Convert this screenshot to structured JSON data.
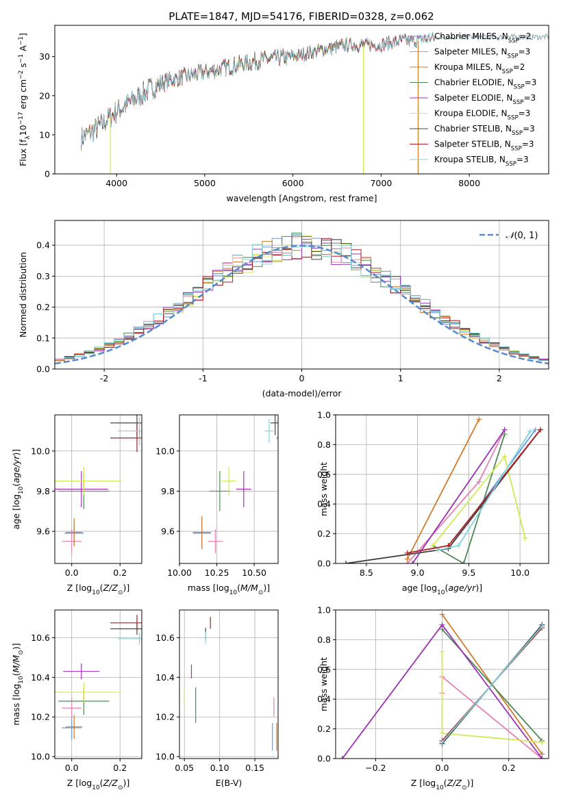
{
  "figure": {
    "title": "PLATE=1847, MJD=54176, FIBERID=0328, z=0.062"
  },
  "colors": {
    "Chabrier MILES": "#6699e0",
    "Salpeter MILES": "#e680b4",
    "Kroupa MILES": "#d27a2a",
    "Chabrier ELODIE": "#4d8a55",
    "Salpeter ELODIE": "#9b2fb5",
    "Kroupa ELODIE": "#d2e84f",
    "Chabrier STELIB": "#444444",
    "Salpeter STELIB": "#b01c1c",
    "Kroupa STELIB": "#7fd3dd",
    "normal": "#5588cc",
    "grid": "#b0b0b0"
  },
  "chart_data": [
    {
      "id": "spectrum",
      "type": "line",
      "xlabel": "wavelength [Angstrom, rest frame]",
      "ylabel": "Flux [f",
      "xlim": [
        3300,
        8900
      ],
      "ylim": [
        0,
        38
      ],
      "xticks": [
        4000,
        5000,
        6000,
        7000,
        8000
      ],
      "yticks": [
        0,
        10,
        20,
        30
      ],
      "grid": false,
      "legend_position": "upper right",
      "legend": [
        {
          "name": "Chabrier MILES",
          "nssp": "2"
        },
        {
          "name": "Salpeter MILES",
          "nssp": "3"
        },
        {
          "name": "Kroupa MILES",
          "nssp": "2"
        },
        {
          "name": "Chabrier ELODIE",
          "nssp": "3"
        },
        {
          "name": "Salpeter ELODIE",
          "nssp": "3"
        },
        {
          "name": "Kroupa ELODIE",
          "nssp": "3"
        },
        {
          "name": "Chabrier STELIB",
          "nssp": "3"
        },
        {
          "name": "Salpeter STELIB",
          "nssp": "3"
        },
        {
          "name": "Kroupa STELIB",
          "nssp": "3"
        }
      ],
      "continuum": {
        "x": [
          3600,
          3800,
          4000,
          4200,
          4400,
          4600,
          4800,
          5000,
          5200,
          5400,
          5600,
          5800,
          6000,
          6200,
          6400,
          6600,
          6800,
          7000,
          7200,
          7400,
          7600
        ],
        "y": [
          9,
          12,
          16,
          19,
          22,
          24,
          25,
          26,
          27,
          28,
          29,
          29.5,
          30,
          31,
          32,
          33,
          33,
          33,
          34,
          34,
          35
        ]
      },
      "model_ranges": {
        "MILES": [
          3600,
          7400
        ],
        "ELODIE": [
          3600,
          6800
        ],
        "STELIB": [
          3600,
          8900
        ]
      },
      "dips": [
        {
          "x": 3930,
          "y": 0
        },
        {
          "x": 6800,
          "y": 0
        },
        {
          "x": 7420,
          "y": 0
        }
      ]
    },
    {
      "id": "residuals",
      "type": "histogram",
      "xlabel": "(data-model)/error",
      "ylabel": "Normed distribution",
      "xlim": [
        -2.5,
        2.5
      ],
      "ylim": [
        0,
        0.48
      ],
      "xticks": [
        -2,
        -1,
        0,
        1,
        2
      ],
      "yticks": [
        0.0,
        0.1,
        0.2,
        0.3,
        0.4
      ],
      "grid": true,
      "legend_position": "upper right",
      "normal_label": "(0, 1)",
      "bin_width": 0.1,
      "bin_start": -2.5
    },
    {
      "id": "age_vs_Z",
      "type": "errorbar",
      "xlabel": "Z [log",
      "ylabel": "age  [log",
      "xlim": [
        -0.07,
        0.29
      ],
      "ylim": [
        9.44,
        10.18
      ],
      "xticks": [
        0.0,
        0.2
      ],
      "yticks": [
        9.6,
        9.8,
        10.0
      ],
      "grid": true,
      "points": [
        {
          "model": "Chabrier MILES",
          "x": 0.01,
          "xerr": 0.04,
          "y": 9.59,
          "yerr": 0.06
        },
        {
          "model": "Salpeter MILES",
          "x": 0.0,
          "xerr": 0.04,
          "y": 9.55,
          "yerr": 0.06
        },
        {
          "model": "Kroupa MILES",
          "x": 0.01,
          "xerr": 0.035,
          "y": 9.595,
          "yerr": 0.07
        },
        {
          "model": "Chabrier ELODIE",
          "x": 0.05,
          "xerr": 0.105,
          "y": 9.8,
          "yerr": 0.09
        },
        {
          "model": "Salpeter ELODIE",
          "x": 0.04,
          "xerr": 0.11,
          "y": 9.81,
          "yerr": 0.09
        },
        {
          "model": "Kroupa ELODIE",
          "x": 0.05,
          "xerr": 0.155,
          "y": 9.85,
          "yerr": 0.07
        },
        {
          "model": "Chabrier STELIB",
          "x": 0.27,
          "xerr": 0.11,
          "y": 10.14,
          "yerr": 0.07
        },
        {
          "model": "Salpeter STELIB",
          "x": 0.27,
          "xerr": 0.11,
          "y": 10.065,
          "yerr": 0.07
        },
        {
          "model": "Kroupa STELIB",
          "x": 0.28,
          "xerr": 0.09,
          "y": 10.1,
          "yerr": 0.07
        }
      ]
    },
    {
      "id": "age_vs_mass",
      "type": "errorbar",
      "xlabel": "mass [log",
      "ylabel": "",
      "xlim": [
        10.0,
        10.66
      ],
      "ylim": [
        9.44,
        10.18
      ],
      "xticks": [
        10.0,
        10.25,
        10.5
      ],
      "xticklabels": [
        "10.00",
        "10.25",
        "10.50"
      ],
      "yticks": [
        9.6,
        9.8,
        10.0
      ],
      "grid": true,
      "points": [
        {
          "model": "Chabrier MILES",
          "x": 10.15,
          "xerr": 0.06,
          "y": 9.59,
          "yerr": 0.08
        },
        {
          "model": "Salpeter MILES",
          "x": 10.24,
          "xerr": 0.05,
          "y": 9.55,
          "yerr": 0.06
        },
        {
          "model": "Kroupa MILES",
          "x": 10.15,
          "xerr": 0.06,
          "y": 9.595,
          "yerr": 0.08
        },
        {
          "model": "Chabrier ELODIE",
          "x": 10.27,
          "xerr": 0.07,
          "y": 9.8,
          "yerr": 0.1
        },
        {
          "model": "Salpeter ELODIE",
          "x": 10.43,
          "xerr": 0.05,
          "y": 9.81,
          "yerr": 0.09
        },
        {
          "model": "Kroupa ELODIE",
          "x": 10.33,
          "xerr": 0.05,
          "y": 9.85,
          "yerr": 0.07
        },
        {
          "model": "Chabrier STELIB",
          "x": 10.64,
          "xerr": 0.03,
          "y": 10.14,
          "yerr": 0.06
        },
        {
          "model": "Salpeter STELIB",
          "x": 10.68,
          "xerr": 0.03,
          "y": 10.065,
          "yerr": 0.07
        },
        {
          "model": "Kroupa STELIB",
          "x": 10.6,
          "xerr": 0.03,
          "y": 10.1,
          "yerr": 0.06
        }
      ]
    },
    {
      "id": "massweight_vs_age",
      "type": "line",
      "xlabel": "age  [log",
      "ylabel": "mass weight",
      "xlim": [
        8.2,
        10.28
      ],
      "ylim": [
        0,
        1
      ],
      "xticks": [
        8.5,
        9.0,
        9.5,
        10.0
      ],
      "yticks": [
        0.0,
        0.2,
        0.4,
        0.6,
        0.8,
        1.0
      ],
      "grid": true,
      "series": [
        {
          "model": "Chabrier MILES",
          "x": [
            8.3,
            9.3,
            10.15
          ],
          "y": [
            0.0,
            0.1,
            0.9
          ]
        },
        {
          "model": "Salpeter MILES",
          "x": [
            8.9,
            9.6,
            9.85
          ],
          "y": [
            0.0,
            0.55,
            0.9
          ]
        },
        {
          "model": "Kroupa MILES",
          "x": [
            8.9,
            9.6
          ],
          "y": [
            0.03,
            0.97
          ]
        },
        {
          "model": "Chabrier ELODIE",
          "x": [
            9.15,
            9.45,
            9.85
          ],
          "y": [
            0.12,
            0.0,
            0.87
          ]
        },
        {
          "model": "Salpeter ELODIE",
          "x": [
            8.95,
            9.85
          ],
          "y": [
            0.0,
            0.9
          ]
        },
        {
          "model": "Kroupa ELODIE",
          "x": [
            9.15,
            9.85,
            10.05
          ],
          "y": [
            0.12,
            0.72,
            0.17
          ]
        },
        {
          "model": "Chabrier STELIB",
          "x": [
            8.3,
            9.3,
            10.2
          ],
          "y": [
            0.0,
            0.1,
            0.9
          ]
        },
        {
          "model": "Salpeter STELIB",
          "x": [
            8.9,
            9.3,
            10.2
          ],
          "y": [
            0.07,
            0.12,
            0.9
          ]
        },
        {
          "model": "Kroupa STELIB",
          "x": [
            9.2,
            9.4,
            10.1
          ],
          "y": [
            0.09,
            0.12,
            0.89
          ]
        }
      ]
    },
    {
      "id": "mass_vs_Z",
      "type": "errorbar",
      "xlabel": "Z [log",
      "ylabel": "mass [log",
      "xlim": [
        -0.07,
        0.29
      ],
      "ylim": [
        9.99,
        10.74
      ],
      "xticks": [
        0.0,
        0.2
      ],
      "yticks": [
        10.0,
        10.2,
        10.4,
        10.6
      ],
      "grid": true,
      "points": [
        {
          "model": "Chabrier MILES",
          "x": 0.0,
          "xerr": 0.04,
          "y": 10.145,
          "yerr": 0.06
        },
        {
          "model": "Salpeter MILES",
          "x": 0.0,
          "xerr": 0.04,
          "y": 10.245,
          "yerr": 0.05
        },
        {
          "model": "Kroupa MILES",
          "x": 0.01,
          "xerr": 0.035,
          "y": 10.15,
          "yerr": 0.06
        },
        {
          "model": "Chabrier ELODIE",
          "x": 0.05,
          "xerr": 0.105,
          "y": 10.28,
          "yerr": 0.07
        },
        {
          "model": "Salpeter ELODIE",
          "x": 0.04,
          "xerr": 0.075,
          "y": 10.43,
          "yerr": 0.04
        },
        {
          "model": "Kroupa ELODIE",
          "x": 0.05,
          "xerr": 0.155,
          "y": 10.325,
          "yerr": 0.05
        },
        {
          "model": "Chabrier STELIB",
          "x": 0.27,
          "xerr": 0.11,
          "y": 10.645,
          "yerr": 0.03
        },
        {
          "model": "Salpeter STELIB",
          "x": 0.27,
          "xerr": 0.11,
          "y": 10.675,
          "yerr": 0.04
        },
        {
          "model": "Kroupa STELIB",
          "x": 0.28,
          "xerr": 0.09,
          "y": 10.595,
          "yerr": 0.03
        }
      ]
    },
    {
      "id": "mass_vs_EBV",
      "type": "errorbar",
      "xlabel": "E(B-V)",
      "ylabel": "",
      "xlim": [
        0.043,
        0.183
      ],
      "ylim": [
        9.99,
        10.74
      ],
      "xticks": [
        0.05,
        0.1,
        0.15
      ],
      "xticklabels": [
        "0.05",
        "0.10",
        "0.15"
      ],
      "yticks": [
        10.0,
        10.2,
        10.4,
        10.6
      ],
      "grid": true,
      "points": [
        {
          "model": "Chabrier MILES",
          "x": 0.175,
          "xerr": 0.0,
          "y": 10.1,
          "yerr": 0.07
        },
        {
          "model": "Salpeter MILES",
          "x": 0.177,
          "xerr": 0.0,
          "y": 10.25,
          "yerr": 0.05
        },
        {
          "model": "Kroupa MILES",
          "x": 0.181,
          "xerr": 0.0,
          "y": 10.1,
          "yerr": 0.07
        },
        {
          "model": "Chabrier ELODIE",
          "x": 0.066,
          "xerr": 0.0,
          "y": 10.26,
          "yerr": 0.09
        },
        {
          "model": "Salpeter ELODIE",
          "x": 0.06,
          "xerr": 0.0,
          "y": 10.43,
          "yerr": 0.035
        },
        {
          "model": "Kroupa ELODIE",
          "x": 0.05,
          "xerr": 0.0,
          "y": 10.3,
          "yerr": 0.05
        },
        {
          "model": "Chabrier STELIB",
          "x": 0.08,
          "xerr": 0.0,
          "y": 10.62,
          "yerr": 0.03
        },
        {
          "model": "Salpeter STELIB",
          "x": 0.087,
          "xerr": 0.0,
          "y": 10.675,
          "yerr": 0.03
        },
        {
          "model": "Kroupa STELIB",
          "x": 0.08,
          "xerr": 0.0,
          "y": 10.6,
          "yerr": 0.03
        }
      ]
    },
    {
      "id": "massweight_vs_Z",
      "type": "line",
      "xlabel": "Z [log",
      "ylabel": "mass weight",
      "xlim": [
        -0.32,
        0.32
      ],
      "ylim": [
        0,
        1
      ],
      "xticks": [
        -0.2,
        0.0,
        0.2
      ],
      "yticks": [
        0.0,
        0.2,
        0.4,
        0.6,
        0.8,
        1.0
      ],
      "grid": true,
      "series": [
        {
          "model": "Chabrier MILES",
          "x": [
            0.0,
            0.3
          ],
          "y": [
            0.1,
            0.9
          ]
        },
        {
          "model": "Salpeter MILES",
          "x": [
            0.0,
            0.0,
            0.3
          ],
          "y": [
            0.44,
            0.55,
            0.0
          ]
        },
        {
          "model": "Kroupa MILES",
          "x": [
            0.0,
            0.3
          ],
          "y": [
            0.97,
            0.03
          ]
        },
        {
          "model": "Chabrier ELODIE",
          "x": [
            0.0,
            0.3
          ],
          "y": [
            0.87,
            0.12
          ]
        },
        {
          "model": "Salpeter ELODIE",
          "x": [
            -0.3,
            0.0,
            0.3
          ],
          "y": [
            0.0,
            0.9,
            0.0
          ]
        },
        {
          "model": "Kroupa ELODIE",
          "x": [
            0.0,
            0.0,
            0.3
          ],
          "y": [
            0.72,
            0.17,
            0.11
          ]
        },
        {
          "model": "Chabrier STELIB",
          "x": [
            0.0,
            0.3
          ],
          "y": [
            0.1,
            0.9
          ]
        },
        {
          "model": "Salpeter STELIB",
          "x": [
            0.0,
            0.3
          ],
          "y": [
            0.12,
            0.88
          ]
        },
        {
          "model": "Kroupa STELIB",
          "x": [
            0.0,
            0.3
          ],
          "y": [
            0.11,
            0.89
          ]
        }
      ]
    }
  ]
}
